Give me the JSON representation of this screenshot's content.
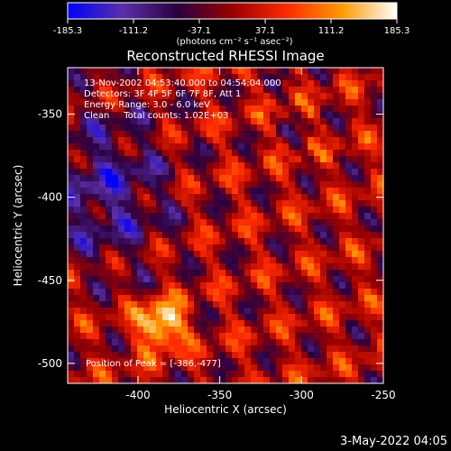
{
  "chart_data": {
    "type": "heatmap",
    "title": "Reconstructed RHESSI Image",
    "xlabel": "Heliocentric X (arcsec)",
    "ylabel": "Heliocentric Y (arcsec)",
    "xlim": [
      -443,
      -250
    ],
    "ylim": [
      -512,
      -322
    ],
    "xticks": [
      "-400",
      "-350",
      "-300",
      "-250"
    ],
    "xtick_values": [
      -400,
      -350,
      -300,
      -250
    ],
    "yticks": [
      "-350",
      "-400",
      "-450",
      "-500"
    ],
    "ytick_values": [
      -350,
      -400,
      -450,
      -500
    ],
    "colorbar": {
      "ticks": [
        "-185.3",
        "-111.2",
        "-37.1",
        "37.1",
        "111.2",
        "185.3"
      ],
      "tick_values": [
        -185.3,
        -111.2,
        -37.1,
        37.1,
        111.2,
        185.3
      ],
      "units": "(photons cm⁻² s⁻¹ asec⁻²)",
      "colors": [
        "#0000ff",
        "#5a2fa8",
        "#2a0040",
        "#9a0000",
        "#ff2a00",
        "#ff9a00",
        "#ffffff"
      ]
    },
    "info_lines": [
      "13-Nov-2002 04:53:40.000 to 04:54:04.000",
      "Detectors: 3F 4F 5F 6F 7F 8F, Att 1",
      "Energy Range: 3.0 - 6.0 keV",
      "Clean     Total counts: 1.02E+03"
    ],
    "peak_label": "Position of Peak = [-386,-477]",
    "peak": {
      "x": -386,
      "y": -477
    },
    "dim_region": {
      "x": -420,
      "y": -395
    }
  },
  "footer": {
    "date": "3-May-2022 04:05"
  }
}
